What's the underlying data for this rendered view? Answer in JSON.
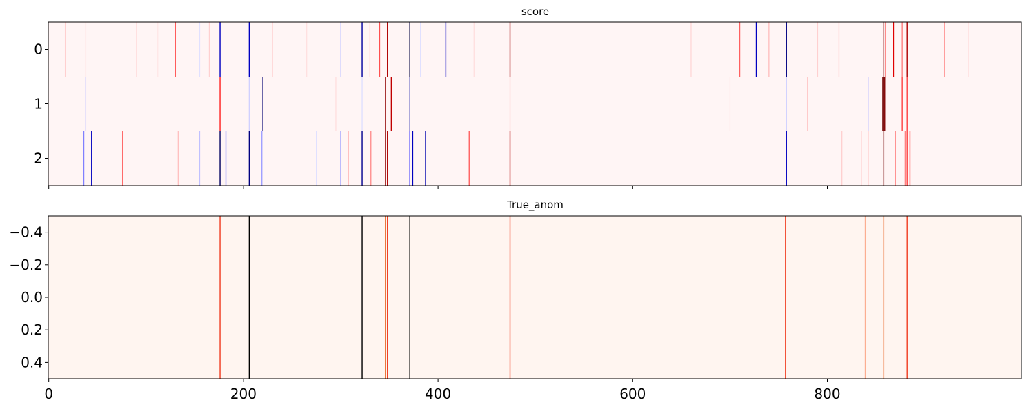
{
  "chart_data": [
    {
      "type": "heatmap",
      "title": "score",
      "colormap": "seismic",
      "n_cols": 1000,
      "rows": [
        "0",
        "1",
        "2"
      ],
      "xlim": [
        0,
        999
      ],
      "x_ticks": [
        0,
        200,
        400,
        600,
        800
      ],
      "x_tick_labels_visible": false,
      "y_ticks": [
        0,
        1,
        2
      ],
      "y_tick_labels": [
        "0",
        "1",
        "2"
      ],
      "grid": false,
      "background_color": "#fff5f5",
      "marks": [
        {
          "row": 0,
          "x": 17,
          "color": "#ffd0d0"
        },
        {
          "row": 0,
          "x": 38,
          "color": "#ffe0e0"
        },
        {
          "row": 0,
          "x": 90,
          "color": "#ffe0e0"
        },
        {
          "row": 0,
          "x": 112,
          "color": "#ffe8e8"
        },
        {
          "row": 0,
          "x": 130,
          "color": "#ff4040"
        },
        {
          "row": 0,
          "x": 155,
          "color": "#e0e0ff"
        },
        {
          "row": 0,
          "x": 165,
          "color": "#ffd0d0"
        },
        {
          "row": 0,
          "x": 176,
          "color": "#0000c0"
        },
        {
          "row": 0,
          "x": 206,
          "color": "#0000c0"
        },
        {
          "row": 0,
          "x": 230,
          "color": "#ffd8d8"
        },
        {
          "row": 0,
          "x": 265,
          "color": "#ffe0e0"
        },
        {
          "row": 0,
          "x": 300,
          "color": "#d0d0ff"
        },
        {
          "row": 0,
          "x": 322,
          "color": "#0000a0"
        },
        {
          "row": 0,
          "x": 330,
          "color": "#ffd0d0"
        },
        {
          "row": 0,
          "x": 340,
          "color": "#ff5050"
        },
        {
          "row": 0,
          "x": 348,
          "color": "#b00000"
        },
        {
          "row": 0,
          "x": 371,
          "color": "#000040"
        },
        {
          "row": 0,
          "x": 382,
          "color": "#e0e0ff"
        },
        {
          "row": 0,
          "x": 408,
          "color": "#0000c0"
        },
        {
          "row": 0,
          "x": 437,
          "color": "#ffe0e0"
        },
        {
          "row": 0,
          "x": 474,
          "color": "#a00000"
        },
        {
          "row": 0,
          "x": 660,
          "color": "#ffd8d8"
        },
        {
          "row": 0,
          "x": 710,
          "color": "#ff6060"
        },
        {
          "row": 0,
          "x": 727,
          "color": "#0000c0"
        },
        {
          "row": 0,
          "x": 740,
          "color": "#ffc0c0"
        },
        {
          "row": 0,
          "x": 758,
          "color": "#000080"
        },
        {
          "row": 0,
          "x": 790,
          "color": "#ffd0d0"
        },
        {
          "row": 0,
          "x": 812,
          "color": "#ffd0d0"
        },
        {
          "row": 0,
          "x": 858,
          "color": "#800000"
        },
        {
          "row": 0,
          "x": 860,
          "color": "#ff3030"
        },
        {
          "row": 0,
          "x": 868,
          "color": "#e00000"
        },
        {
          "row": 0,
          "x": 877,
          "color": "#ff8080"
        },
        {
          "row": 0,
          "x": 882,
          "color": "#b00000"
        },
        {
          "row": 0,
          "x": 920,
          "color": "#ff5050"
        },
        {
          "row": 0,
          "x": 945,
          "color": "#ffe0e0"
        },
        {
          "row": 1,
          "x": 38,
          "color": "#c0c0ff"
        },
        {
          "row": 1,
          "x": 176,
          "color": "#ff2020"
        },
        {
          "row": 1,
          "x": 206,
          "color": "#d0d0ff"
        },
        {
          "row": 1,
          "x": 220,
          "color": "#000070"
        },
        {
          "row": 1,
          "x": 295,
          "color": "#ffe0e0"
        },
        {
          "row": 1,
          "x": 322,
          "color": "#e0e0ff"
        },
        {
          "row": 1,
          "x": 346,
          "color": "#900000"
        },
        {
          "row": 1,
          "x": 352,
          "color": "#c00000"
        },
        {
          "row": 1,
          "x": 371,
          "color": "#6060c0"
        },
        {
          "row": 1,
          "x": 474,
          "color": "#ffd0d0"
        },
        {
          "row": 1,
          "x": 700,
          "color": "#ffe8e8"
        },
        {
          "row": 1,
          "x": 758,
          "color": "#d0d0ff"
        },
        {
          "row": 1,
          "x": 780,
          "color": "#ff9090"
        },
        {
          "row": 1,
          "x": 842,
          "color": "#c0c0ff"
        },
        {
          "row": 1,
          "x": 857,
          "color": "#700000"
        },
        {
          "row": 1,
          "x": 858,
          "color": "#700000"
        },
        {
          "row": 1,
          "x": 859,
          "color": "#800000"
        },
        {
          "row": 1,
          "x": 877,
          "color": "#ff4040"
        },
        {
          "row": 1,
          "x": 882,
          "color": "#ff4040"
        },
        {
          "row": 2,
          "x": 36,
          "color": "#8080ff"
        },
        {
          "row": 2,
          "x": 44,
          "color": "#0000c0"
        },
        {
          "row": 2,
          "x": 76,
          "color": "#ff4040"
        },
        {
          "row": 2,
          "x": 133,
          "color": "#ffc0c0"
        },
        {
          "row": 2,
          "x": 155,
          "color": "#c0c0ff"
        },
        {
          "row": 2,
          "x": 176,
          "color": "#000060"
        },
        {
          "row": 2,
          "x": 182,
          "color": "#8080ff"
        },
        {
          "row": 2,
          "x": 206,
          "color": "#000080"
        },
        {
          "row": 2,
          "x": 219,
          "color": "#a0a0ff"
        },
        {
          "row": 2,
          "x": 275,
          "color": "#e0e0ff"
        },
        {
          "row": 2,
          "x": 300,
          "color": "#a0a0ff"
        },
        {
          "row": 2,
          "x": 308,
          "color": "#ffc0c0"
        },
        {
          "row": 2,
          "x": 322,
          "color": "#000090"
        },
        {
          "row": 2,
          "x": 331,
          "color": "#ff9090"
        },
        {
          "row": 2,
          "x": 346,
          "color": "#900000"
        },
        {
          "row": 2,
          "x": 348,
          "color": "#b00000"
        },
        {
          "row": 2,
          "x": 371,
          "color": "#4040ff"
        },
        {
          "row": 2,
          "x": 374,
          "color": "#0000c0"
        },
        {
          "row": 2,
          "x": 387,
          "color": "#4040c0"
        },
        {
          "row": 2,
          "x": 432,
          "color": "#ff6060"
        },
        {
          "row": 2,
          "x": 474,
          "color": "#b00000"
        },
        {
          "row": 2,
          "x": 758,
          "color": "#0000c0"
        },
        {
          "row": 2,
          "x": 815,
          "color": "#ffd0d0"
        },
        {
          "row": 2,
          "x": 835,
          "color": "#ffd0d0"
        },
        {
          "row": 2,
          "x": 842,
          "color": "#ffc0c0"
        },
        {
          "row": 2,
          "x": 858,
          "color": "#700000"
        },
        {
          "row": 2,
          "x": 870,
          "color": "#ff9090"
        },
        {
          "row": 2,
          "x": 880,
          "color": "#ff8080"
        },
        {
          "row": 2,
          "x": 882,
          "color": "#ff4040"
        },
        {
          "row": 2,
          "x": 885,
          "color": "#ff3030"
        }
      ]
    },
    {
      "type": "heatmap",
      "title": "True_anom",
      "colormap": "Reds",
      "n_cols": 1000,
      "xlim": [
        0,
        999
      ],
      "ylim": [
        -0.5,
        0.5
      ],
      "x_ticks": [
        0,
        200,
        400,
        600,
        800
      ],
      "x_tick_labels": [
        "0",
        "200",
        "400",
        "600",
        "800"
      ],
      "y_ticks": [
        -0.4,
        -0.2,
        0.0,
        0.2,
        0.4
      ],
      "y_tick_labels": [
        "−0.4",
        "−0.2",
        "0.0",
        "0.2",
        "0.4"
      ],
      "grid": false,
      "background_color": "#fff5f0",
      "marks": [
        {
          "x": 176,
          "color": "#f03b20"
        },
        {
          "x": 206,
          "color": "#000000"
        },
        {
          "x": 322,
          "color": "#000000"
        },
        {
          "x": 346,
          "color": "#e6550d"
        },
        {
          "x": 348,
          "color": "#f03b20"
        },
        {
          "x": 371,
          "color": "#000000"
        },
        {
          "x": 474,
          "color": "#f03b20"
        },
        {
          "x": 757,
          "color": "#f03b20"
        },
        {
          "x": 839,
          "color": "#fcae91"
        },
        {
          "x": 858,
          "color": "#e6550d"
        },
        {
          "x": 882,
          "color": "#f03b20"
        }
      ]
    }
  ]
}
